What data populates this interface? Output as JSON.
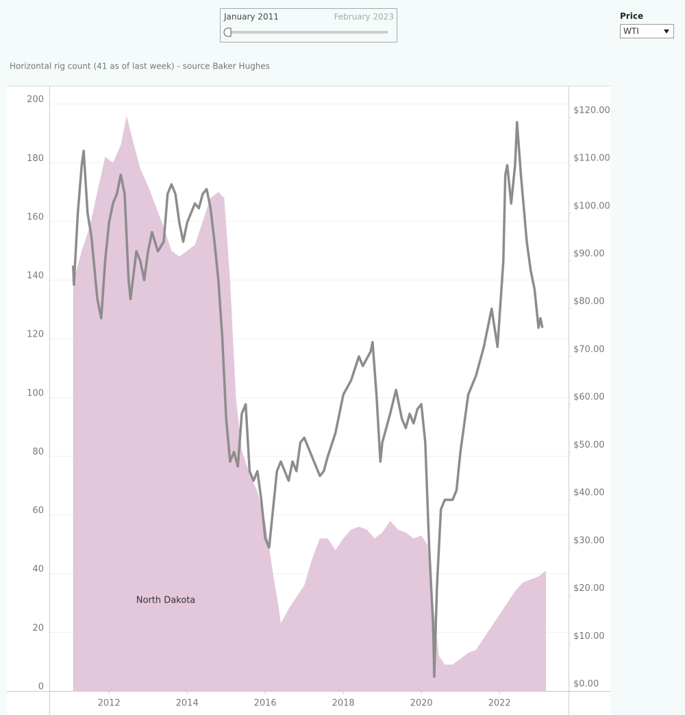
{
  "controls": {
    "date_range": {
      "start": "January 2011",
      "end": "February 2023"
    },
    "price_filter": {
      "label": "Price",
      "selected": "WTI"
    }
  },
  "chart_data": {
    "type": "combo",
    "title": "Horizontal rig count (41 as of last week) - source Baker Hughes",
    "xlim": [
      2010.47,
      2023.77
    ],
    "xticks": [
      2012,
      2014,
      2016,
      2018,
      2020,
      2022
    ],
    "ylim": [
      0,
      206
    ],
    "yticks": [
      0,
      20,
      40,
      60,
      80,
      100,
      120,
      140,
      160,
      180,
      200
    ],
    "y2lim": [
      0,
      126.5
    ],
    "y2ticks": [
      {
        "value": 0,
        "label": "$0.00"
      },
      {
        "value": 10,
        "label": "$10.00"
      },
      {
        "value": 20,
        "label": "$20.00"
      },
      {
        "value": 30,
        "label": "$30.00"
      },
      {
        "value": 40,
        "label": "$40.00"
      },
      {
        "value": 50,
        "label": "$50.00"
      },
      {
        "value": 60,
        "label": "$60.00"
      },
      {
        "value": 70,
        "label": "$70.00"
      },
      {
        "value": 80,
        "label": "$80.00"
      },
      {
        "value": 90,
        "label": "$90.00"
      },
      {
        "value": 100,
        "label": "$100.00"
      },
      {
        "value": 110,
        "label": "$110.00"
      },
      {
        "value": 120,
        "label": "$120.00"
      }
    ],
    "grid": true,
    "series": [
      {
        "name": "North Dakota",
        "kind": "area",
        "color": "#e3c7da",
        "x": [
          2011.08,
          2011.1,
          2011.3,
          2011.5,
          2011.7,
          2011.9,
          2012.1,
          2012.3,
          2012.45,
          2012.6,
          2012.8,
          2013.0,
          2013.2,
          2013.4,
          2013.6,
          2013.8,
          2014.0,
          2014.2,
          2014.4,
          2014.6,
          2014.8,
          2014.95,
          2015.1,
          2015.25,
          2015.4,
          2015.6,
          2015.8,
          2016.0,
          2016.2,
          2016.35,
          2016.4,
          2016.6,
          2016.8,
          2017.0,
          2017.2,
          2017.4,
          2017.6,
          2017.8,
          2018.0,
          2018.2,
          2018.4,
          2018.6,
          2018.8,
          2019.0,
          2019.2,
          2019.4,
          2019.6,
          2019.8,
          2020.0,
          2020.15,
          2020.3,
          2020.45,
          2020.6,
          2020.8,
          2021.0,
          2021.2,
          2021.4,
          2021.6,
          2021.8,
          2022.0,
          2022.2,
          2022.4,
          2022.6,
          2022.8,
          2023.0,
          2023.19
        ],
        "values": [
          137,
          140,
          150,
          158,
          170,
          182,
          180,
          186,
          196,
          188,
          178,
          172,
          165,
          158,
          150,
          148,
          150,
          152,
          160,
          168,
          170,
          168,
          140,
          100,
          82,
          74,
          68,
          58,
          40,
          28,
          23,
          28,
          32,
          36,
          45,
          52,
          52,
          48,
          52,
          55,
          56,
          55,
          52,
          54,
          58,
          55,
          54,
          52,
          53,
          50,
          30,
          12,
          9,
          9,
          11,
          13,
          14,
          18,
          22,
          26,
          30,
          34,
          37,
          38,
          39,
          41
        ]
      },
      {
        "kind": "line",
        "axis": "y2",
        "color": "#8c8c8c",
        "x": [
          2011.08,
          2011.1,
          2011.2,
          2011.3,
          2011.35,
          2011.45,
          2011.55,
          2011.7,
          2011.8,
          2011.9,
          2012.0,
          2012.1,
          2012.2,
          2012.3,
          2012.4,
          2012.5,
          2012.55,
          2012.7,
          2012.8,
          2012.9,
          2013.0,
          2013.1,
          2013.25,
          2013.4,
          2013.5,
          2013.6,
          2013.7,
          2013.8,
          2013.9,
          2014.0,
          2014.1,
          2014.2,
          2014.3,
          2014.4,
          2014.5,
          2014.6,
          2014.7,
          2014.8,
          2014.9,
          2015.0,
          2015.1,
          2015.2,
          2015.3,
          2015.4,
          2015.5,
          2015.6,
          2015.7,
          2015.8,
          2015.9,
          2016.0,
          2016.1,
          2016.2,
          2016.3,
          2016.4,
          2016.5,
          2016.6,
          2016.7,
          2016.8,
          2016.9,
          2017.0,
          2017.2,
          2017.4,
          2017.5,
          2017.6,
          2017.8,
          2018.0,
          2018.2,
          2018.4,
          2018.5,
          2018.7,
          2018.75,
          2018.85,
          2018.95,
          2019.0,
          2019.2,
          2019.35,
          2019.5,
          2019.6,
          2019.7,
          2019.8,
          2019.9,
          2020.0,
          2020.1,
          2020.2,
          2020.3,
          2020.33,
          2020.4,
          2020.5,
          2020.6,
          2020.8,
          2020.9,
          2021.0,
          2021.2,
          2021.4,
          2021.6,
          2021.8,
          2021.95,
          2022.1,
          2022.15,
          2022.2,
          2022.3,
          2022.4,
          2022.45,
          2022.55,
          2022.7,
          2022.8,
          2022.9,
          2023.0,
          2023.05,
          2023.1
        ],
        "values": [
          89,
          85,
          100,
          110,
          113,
          100,
          95,
          82,
          78,
          90,
          98,
          102,
          104,
          108,
          104,
          86,
          82,
          92,
          90,
          86,
          92,
          96,
          92,
          94,
          104,
          106,
          104,
          98,
          94,
          98,
          100,
          102,
          101,
          104,
          105,
          101,
          94,
          86,
          74,
          57,
          48,
          50,
          47,
          58,
          60,
          46,
          44,
          46,
          40,
          32,
          30,
          38,
          46,
          48,
          46,
          44,
          48,
          46,
          52,
          53,
          49,
          45,
          46,
          49,
          54,
          62,
          65,
          70,
          68,
          71,
          73,
          62,
          48,
          52,
          58,
          63,
          57,
          55,
          58,
          56,
          59,
          60,
          52,
          30,
          14,
          3,
          22,
          38,
          40,
          40,
          42,
          50,
          62,
          66,
          72,
          80,
          72,
          90,
          108,
          110,
          102,
          110,
          119,
          108,
          94,
          88,
          84,
          76,
          78,
          76
        ]
      }
    ]
  }
}
